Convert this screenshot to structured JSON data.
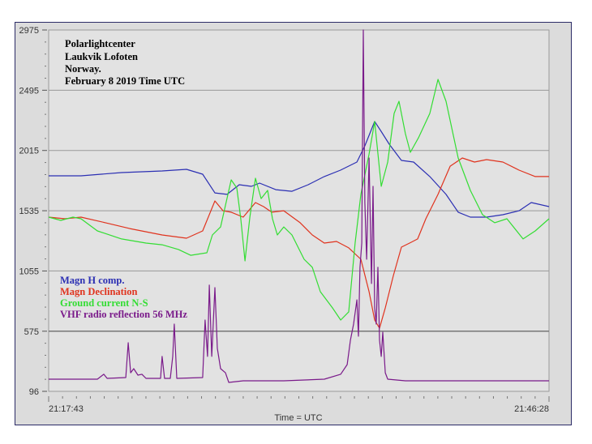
{
  "chart_data": {
    "type": "line",
    "title_lines": [
      "Polarlightcenter",
      "Laukvik  Lofoten",
      "Norway.",
      "February 8 2019   Time UTC"
    ],
    "xlabel": "Time = UTC",
    "x_unit": "minutes since 21:17:43",
    "xlim": [
      0,
      28.75
    ],
    "x_tick_labels": [
      "21:17:43",
      "21:46:28"
    ],
    "ylim": [
      96,
      2975
    ],
    "y_ticks": [
      96,
      575,
      1055,
      1535,
      2015,
      2495,
      2975
    ],
    "grid": true,
    "legend_placement": "left-middle",
    "series": [
      {
        "name": "Magn H comp.",
        "color": "#2b2fb3",
        "points": [
          [
            0,
            1813
          ],
          [
            1.86,
            1813
          ],
          [
            4.19,
            1839
          ],
          [
            6.52,
            1852
          ],
          [
            7.92,
            1865
          ],
          [
            8.85,
            1826
          ],
          [
            9.55,
            1677
          ],
          [
            10.25,
            1665
          ],
          [
            10.95,
            1742
          ],
          [
            11.65,
            1729
          ],
          [
            12.12,
            1755
          ],
          [
            13.05,
            1703
          ],
          [
            13.98,
            1690
          ],
          [
            14.91,
            1742
          ],
          [
            15.84,
            1807
          ],
          [
            16.77,
            1858
          ],
          [
            17.71,
            1923
          ],
          [
            18.17,
            2052
          ],
          [
            18.73,
            2246
          ],
          [
            19.1,
            2168
          ],
          [
            19.57,
            2065
          ],
          [
            20.27,
            1936
          ],
          [
            20.97,
            1923
          ],
          [
            21.9,
            1807
          ],
          [
            22.83,
            1665
          ],
          [
            23.53,
            1523
          ],
          [
            24.23,
            1484
          ],
          [
            25.16,
            1484
          ],
          [
            26.1,
            1503
          ],
          [
            27.03,
            1535
          ],
          [
            27.73,
            1600
          ],
          [
            28.75,
            1568
          ]
        ]
      },
      {
        "name": "Magn Declination",
        "color": "#e0331e",
        "points": [
          [
            0,
            1484
          ],
          [
            0.93,
            1471
          ],
          [
            1.86,
            1484
          ],
          [
            3.26,
            1439
          ],
          [
            4.66,
            1393
          ],
          [
            6.52,
            1342
          ],
          [
            7.92,
            1316
          ],
          [
            8.85,
            1374
          ],
          [
            9.55,
            1613
          ],
          [
            10.02,
            1535
          ],
          [
            10.49,
            1523
          ],
          [
            11.18,
            1484
          ],
          [
            11.88,
            1600
          ],
          [
            12.35,
            1568
          ],
          [
            12.82,
            1523
          ],
          [
            13.51,
            1535
          ],
          [
            14.45,
            1439
          ],
          [
            15.15,
            1342
          ],
          [
            15.84,
            1277
          ],
          [
            16.54,
            1290
          ],
          [
            17.24,
            1239
          ],
          [
            17.94,
            1148
          ],
          [
            18.41,
            890
          ],
          [
            18.73,
            664
          ],
          [
            19.01,
            599
          ],
          [
            19.34,
            761
          ],
          [
            19.81,
            1019
          ],
          [
            20.27,
            1245
          ],
          [
            20.74,
            1277
          ],
          [
            21.2,
            1310
          ],
          [
            21.67,
            1471
          ],
          [
            22.37,
            1665
          ],
          [
            23.07,
            1890
          ],
          [
            23.77,
            1955
          ],
          [
            24.47,
            1923
          ],
          [
            25.16,
            1942
          ],
          [
            26.1,
            1923
          ],
          [
            27.03,
            1858
          ],
          [
            27.96,
            1807
          ],
          [
            28.75,
            1807
          ]
        ]
      },
      {
        "name": "Ground current N-S",
        "color": "#33dd33",
        "points": [
          [
            0,
            1484
          ],
          [
            0.7,
            1458
          ],
          [
            1.4,
            1484
          ],
          [
            1.86,
            1471
          ],
          [
            2.8,
            1374
          ],
          [
            4.19,
            1310
          ],
          [
            5.59,
            1277
          ],
          [
            6.52,
            1264
          ],
          [
            7.46,
            1226
          ],
          [
            8.16,
            1180
          ],
          [
            9.09,
            1200
          ],
          [
            9.41,
            1342
          ],
          [
            9.88,
            1406
          ],
          [
            10.49,
            1781
          ],
          [
            10.81,
            1716
          ],
          [
            11.04,
            1471
          ],
          [
            11.28,
            1135
          ],
          [
            11.56,
            1484
          ],
          [
            11.88,
            1794
          ],
          [
            12.21,
            1632
          ],
          [
            12.58,
            1697
          ],
          [
            12.86,
            1471
          ],
          [
            13.14,
            1342
          ],
          [
            13.51,
            1406
          ],
          [
            13.98,
            1342
          ],
          [
            14.68,
            1148
          ],
          [
            15.15,
            1084
          ],
          [
            15.61,
            890
          ],
          [
            16.31,
            761
          ],
          [
            16.78,
            664
          ],
          [
            17.24,
            729
          ],
          [
            17.61,
            1277
          ],
          [
            17.94,
            1665
          ],
          [
            18.41,
            1987
          ],
          [
            18.73,
            2246
          ],
          [
            19.11,
            1729
          ],
          [
            19.48,
            1923
          ],
          [
            19.85,
            2310
          ],
          [
            20.13,
            2407
          ],
          [
            20.5,
            2149
          ],
          [
            20.78,
            2000
          ],
          [
            21.25,
            2116
          ],
          [
            21.9,
            2310
          ],
          [
            22.37,
            2581
          ],
          [
            22.83,
            2407
          ],
          [
            23.53,
            1955
          ],
          [
            24.23,
            1697
          ],
          [
            24.93,
            1503
          ],
          [
            25.63,
            1439
          ],
          [
            26.33,
            1471
          ],
          [
            27.26,
            1310
          ],
          [
            27.96,
            1374
          ],
          [
            28.75,
            1471
          ]
        ]
      },
      {
        "name": "VHF radio reflection 56 MHz",
        "color": "#7a1a8a",
        "points": [
          [
            0,
            193
          ],
          [
            2.8,
            193
          ],
          [
            3.17,
            232
          ],
          [
            3.36,
            199
          ],
          [
            4.43,
            206
          ],
          [
            4.57,
            483
          ],
          [
            4.71,
            244
          ],
          [
            4.89,
            277
          ],
          [
            5.13,
            225
          ],
          [
            5.36,
            232
          ],
          [
            5.59,
            199
          ],
          [
            6.43,
            199
          ],
          [
            6.52,
            374
          ],
          [
            6.66,
            199
          ],
          [
            6.99,
            199
          ],
          [
            7.13,
            374
          ],
          [
            7.22,
            632
          ],
          [
            7.36,
            199
          ],
          [
            8.85,
            206
          ],
          [
            8.99,
            664
          ],
          [
            9.13,
            374
          ],
          [
            9.23,
            942
          ],
          [
            9.37,
            374
          ],
          [
            9.55,
            922
          ],
          [
            9.69,
            438
          ],
          [
            9.88,
            277
          ],
          [
            10.16,
            244
          ],
          [
            10.35,
            167
          ],
          [
            11.18,
            180
          ],
          [
            13.51,
            180
          ],
          [
            15.84,
            193
          ],
          [
            16.78,
            232
          ],
          [
            17.15,
            309
          ],
          [
            17.34,
            503
          ],
          [
            17.52,
            632
          ],
          [
            17.71,
            825
          ],
          [
            17.8,
            535
          ],
          [
            17.89,
            1084
          ],
          [
            17.99,
            1277
          ],
          [
            18.08,
            2975
          ],
          [
            18.17,
            1600
          ],
          [
            18.27,
            1148
          ],
          [
            18.41,
            1955
          ],
          [
            18.55,
            955
          ],
          [
            18.64,
            1729
          ],
          [
            18.73,
            761
          ],
          [
            18.82,
            632
          ],
          [
            18.92,
            1084
          ],
          [
            19.01,
            503
          ],
          [
            19.11,
            374
          ],
          [
            19.2,
            567
          ],
          [
            19.34,
            244
          ],
          [
            19.48,
            193
          ],
          [
            20.5,
            180
          ],
          [
            25.16,
            180
          ],
          [
            28.75,
            180
          ]
        ]
      }
    ]
  }
}
